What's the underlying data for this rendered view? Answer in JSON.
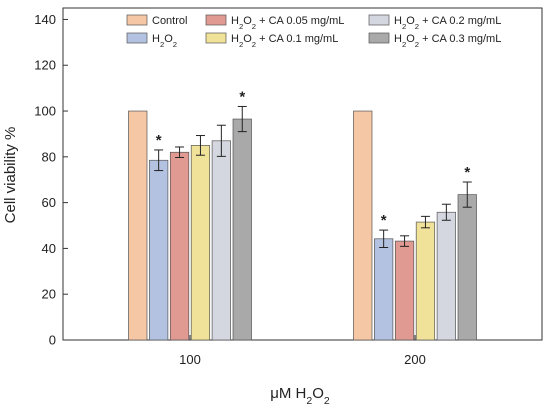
{
  "chart_data": {
    "type": "bar",
    "xlabel": "μM H2O2",
    "ylabel": "Cell viability %",
    "ylim": [
      0,
      145
    ],
    "yticks": [
      0,
      20,
      40,
      60,
      80,
      100,
      120,
      140
    ],
    "categories": [
      "100",
      "200"
    ],
    "grid": false,
    "legend_position": "top",
    "series": [
      {
        "name": "Control",
        "color": "#F6C7A5",
        "values": [
          100,
          100
        ],
        "errors": [
          0,
          0
        ],
        "significant": [
          false,
          false
        ]
      },
      {
        "name": "H2O2",
        "color": "#B3C2E0",
        "values": [
          78.5,
          44.2
        ],
        "errors": [
          4.5,
          3.8
        ],
        "significant": [
          true,
          true
        ]
      },
      {
        "name": "H2O2 + CA 0.05 mg/mL",
        "color": "#E09A91",
        "values": [
          82,
          43.2
        ],
        "errors": [
          2.3,
          2.3
        ],
        "significant": [
          false,
          false
        ]
      },
      {
        "name": "H2O2 + CA 0.1 mg/mL",
        "color": "#F1E29A",
        "values": [
          85,
          51.5
        ],
        "errors": [
          4.3,
          2.5
        ],
        "significant": [
          false,
          false
        ]
      },
      {
        "name": "H2O2 + CA 0.2 mg/mL",
        "color": "#D5D7E0",
        "values": [
          87,
          55.8
        ],
        "errors": [
          6.8,
          3.5
        ],
        "significant": [
          false,
          false
        ]
      },
      {
        "name": "H2O2 + CA 0.3 mg/mL",
        "color": "#A9A9A9",
        "values": [
          96.5,
          63.5
        ],
        "errors": [
          5.5,
          5.5
        ],
        "significant": [
          true,
          true
        ]
      }
    ],
    "significance_marker": "*"
  }
}
